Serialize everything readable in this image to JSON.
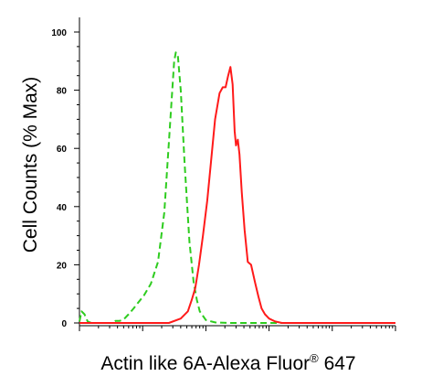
{
  "chart_data": {
    "type": "line",
    "ylabel": "Cell Counts (% Max)",
    "xlabel": {
      "main": "Actin like 6A-Alexa Fluor",
      "sup": "®",
      "suffix": " 647"
    },
    "xscale": "log",
    "xlim": [
      1,
      100000
    ],
    "ylim": [
      0,
      100
    ],
    "yticks": [
      "0",
      "20",
      "40",
      "60",
      "80",
      "100"
    ],
    "grid": false,
    "series": [
      {
        "color": "#2ecc1f",
        "dash": "dashed",
        "x": [
          1.0,
          1.08,
          1.2,
          1.35,
          1.55,
          1.8,
          2.2,
          3.2,
          3.7,
          4.3,
          5.0,
          6.0,
          7.2,
          8.5,
          10.5,
          13.5,
          17.5,
          22.0,
          26.0,
          29.0,
          31.5,
          33.5,
          36.0,
          40.0,
          46.0,
          55.0,
          64.0,
          72.0,
          80.0,
          100.0,
          140.0,
          230.0,
          400.0,
          700.0,
          1000.0,
          3000.0,
          10000.0,
          100000.0
        ],
        "y": [
          0.5,
          4.0,
          3.0,
          0.5,
          0.0,
          0.0,
          0.0,
          0.0,
          0.7,
          0.7,
          1.2,
          3.0,
          5.0,
          7.0,
          9.5,
          13.5,
          21.0,
          38.0,
          62.0,
          78.0,
          90.0,
          93.0,
          92.0,
          80.0,
          55.0,
          28.0,
          14.0,
          8.0,
          4.0,
          1.0,
          0.2,
          0.0,
          0.0,
          0.0,
          0.0,
          0.0,
          0.0,
          0.0
        ]
      },
      {
        "color": "#ff1a1a",
        "dash": "solid",
        "x": [
          1.0,
          10.0,
          26.0,
          40.0,
          52.0,
          60.0,
          68.0,
          78.0,
          90.0,
          105.0,
          120.0,
          140.0,
          165.0,
          185.0,
          205.0,
          225.0,
          245.0,
          265.0,
          285.0,
          300.0,
          320.0,
          340.0,
          370.0,
          410.0,
          460.0,
          520.0,
          600.0,
          680.0,
          760.0,
          860.0,
          1000.0,
          1250.0,
          1600.0,
          2200.0,
          3000.0,
          10000.0,
          100000.0
        ],
        "y": [
          0.0,
          0.0,
          0.0,
          1.5,
          4.0,
          8.0,
          12.0,
          20.0,
          30.0,
          42.0,
          55.0,
          70.0,
          79.0,
          81.0,
          81.0,
          85.0,
          88.0,
          82.0,
          66.0,
          61.0,
          63.0,
          58.0,
          45.0,
          32.0,
          21.0,
          20.0,
          14.0,
          9.0,
          5.0,
          3.0,
          1.5,
          0.5,
          0.0,
          0.0,
          0.0,
          0.0,
          0.0
        ]
      }
    ]
  }
}
